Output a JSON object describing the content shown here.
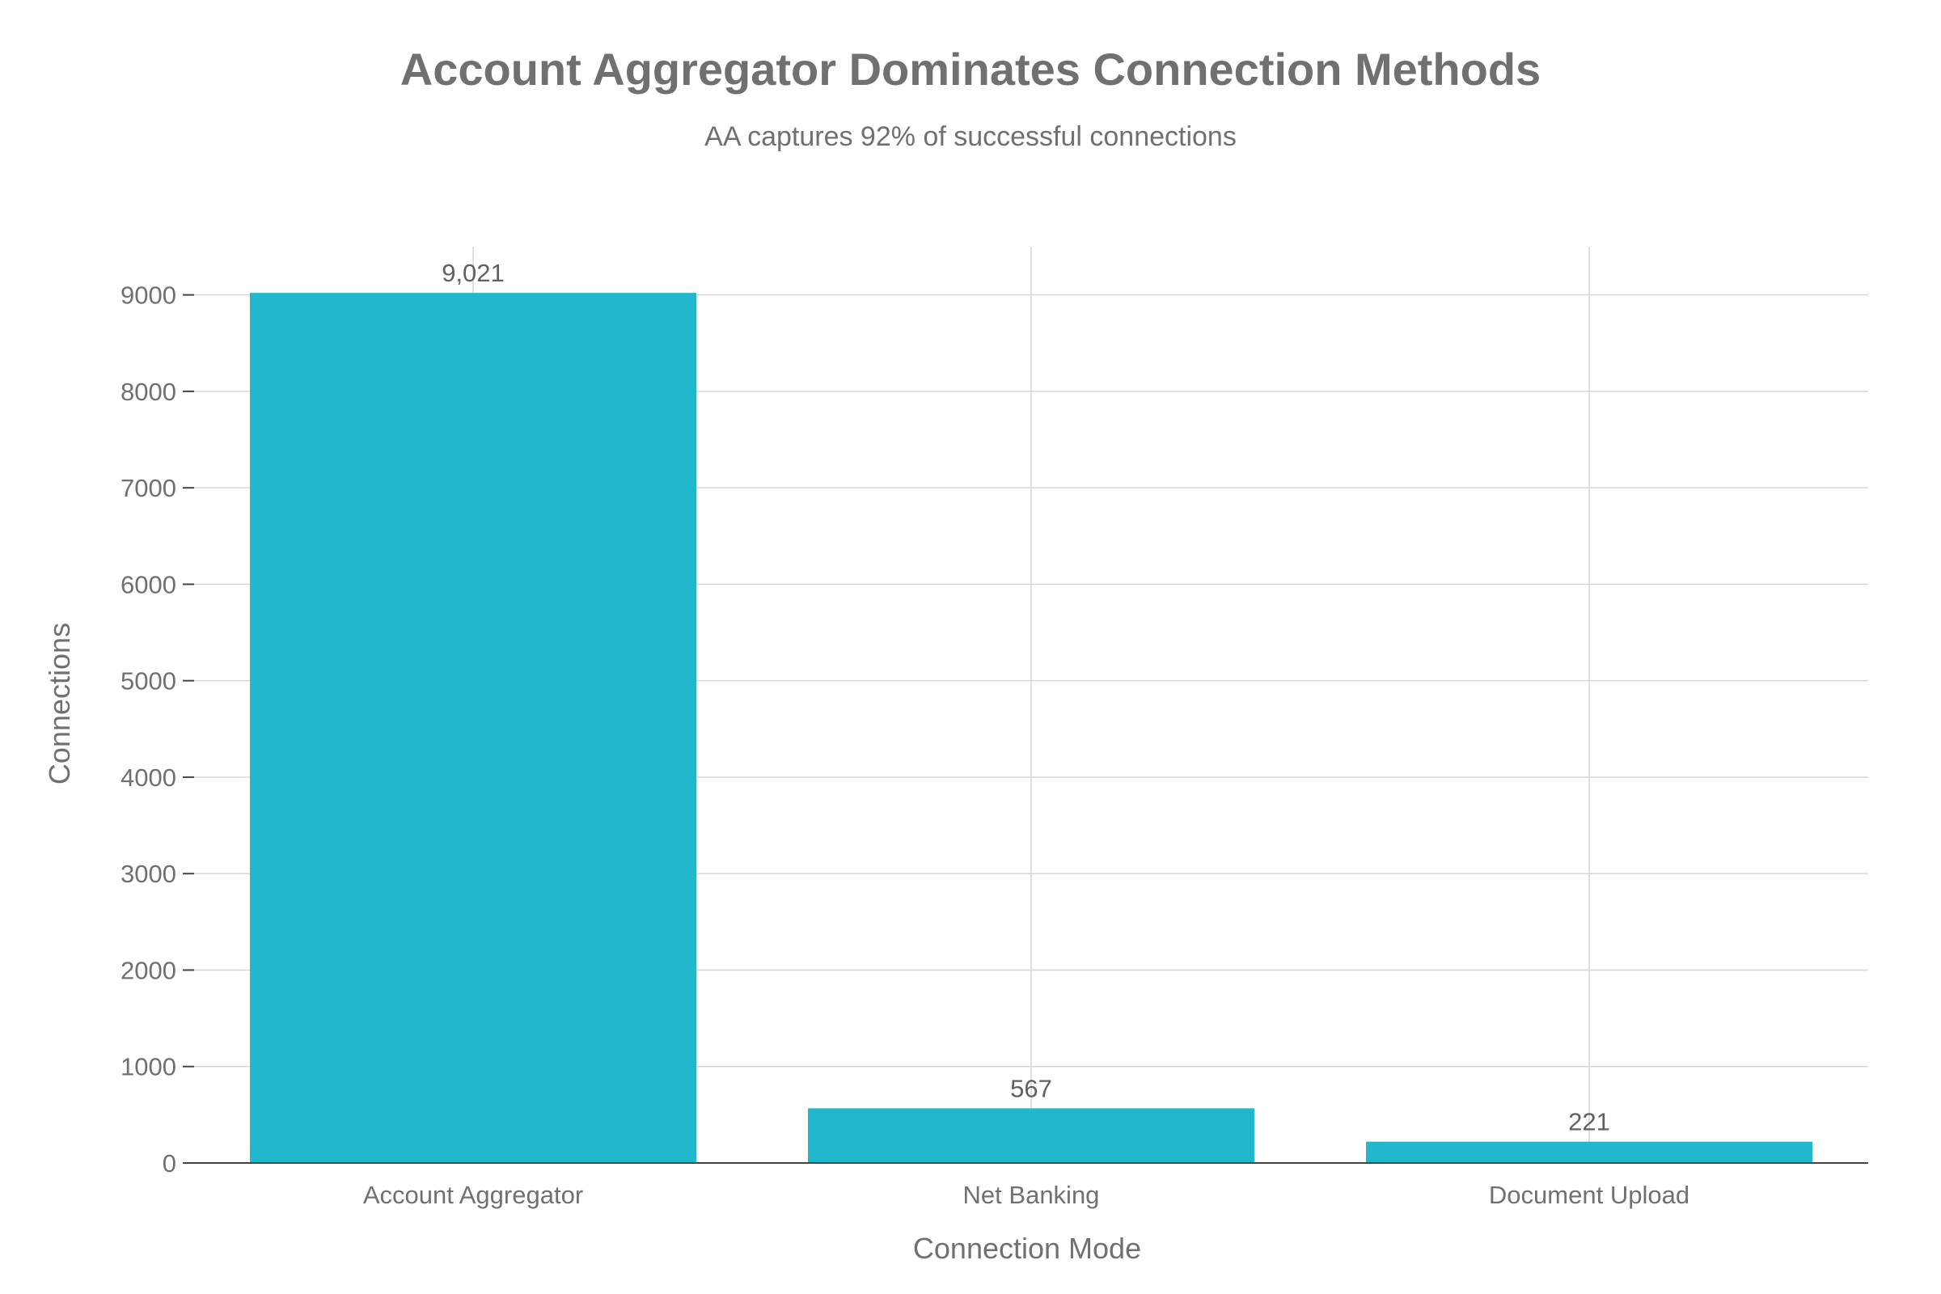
{
  "chart_data": {
    "type": "bar",
    "title": "Account Aggregator Dominates Connection Methods",
    "subtitle": "AA captures 92% of successful connections",
    "xlabel": "Connection Mode",
    "ylabel": "Connections",
    "categories": [
      "Account Aggregator",
      "Net Banking",
      "Document Upload"
    ],
    "values": [
      9021,
      567,
      221
    ],
    "value_labels": [
      "9,021",
      "567",
      "221"
    ],
    "ylim": [
      0,
      9500
    ],
    "yticks": [
      0,
      1000,
      2000,
      3000,
      4000,
      5000,
      6000,
      7000,
      8000,
      9000
    ],
    "ytick_labels": [
      "0",
      "1000",
      "2000",
      "3000",
      "4000",
      "5000",
      "6000",
      "7000",
      "8000",
      "9000"
    ],
    "grid": true,
    "legend": "none",
    "bar_color": "#21b7cc"
  }
}
